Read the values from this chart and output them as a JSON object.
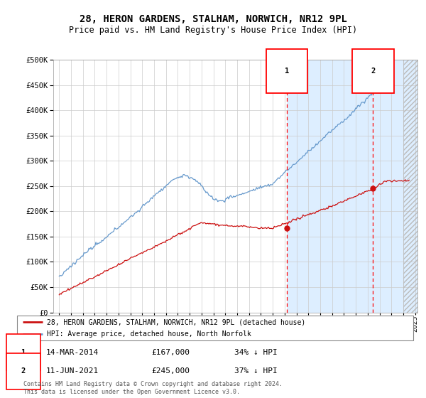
{
  "title": "28, HERON GARDENS, STALHAM, NORWICH, NR12 9PL",
  "subtitle": "Price paid vs. HM Land Registry's House Price Index (HPI)",
  "legend_line1": "28, HERON GARDENS, STALHAM, NORWICH, NR12 9PL (detached house)",
  "legend_line2": "HPI: Average price, detached house, North Norfolk",
  "annotation1_date": "14-MAR-2014",
  "annotation1_price": "£167,000",
  "annotation1_hpi": "34% ↓ HPI",
  "annotation1_year": 2014.2,
  "annotation1_value": 167000,
  "annotation2_date": "11-JUN-2021",
  "annotation2_price": "£245,000",
  "annotation2_hpi": "37% ↓ HPI",
  "annotation2_year": 2021.45,
  "annotation2_value": 245000,
  "footer": "Contains HM Land Registry data © Crown copyright and database right 2024.\nThis data is licensed under the Open Government Licence v3.0.",
  "hpi_color": "#6699cc",
  "sale_color": "#cc1111",
  "bg_color": "#ffffff",
  "shade_color": "#ddeeff",
  "ylim": [
    0,
    500000
  ],
  "yticks": [
    0,
    50000,
    100000,
    150000,
    200000,
    250000,
    300000,
    350000,
    400000,
    450000,
    500000
  ],
  "xmin": 1995.0,
  "xmax": 2025.0,
  "hatch_start": 2024.0
}
